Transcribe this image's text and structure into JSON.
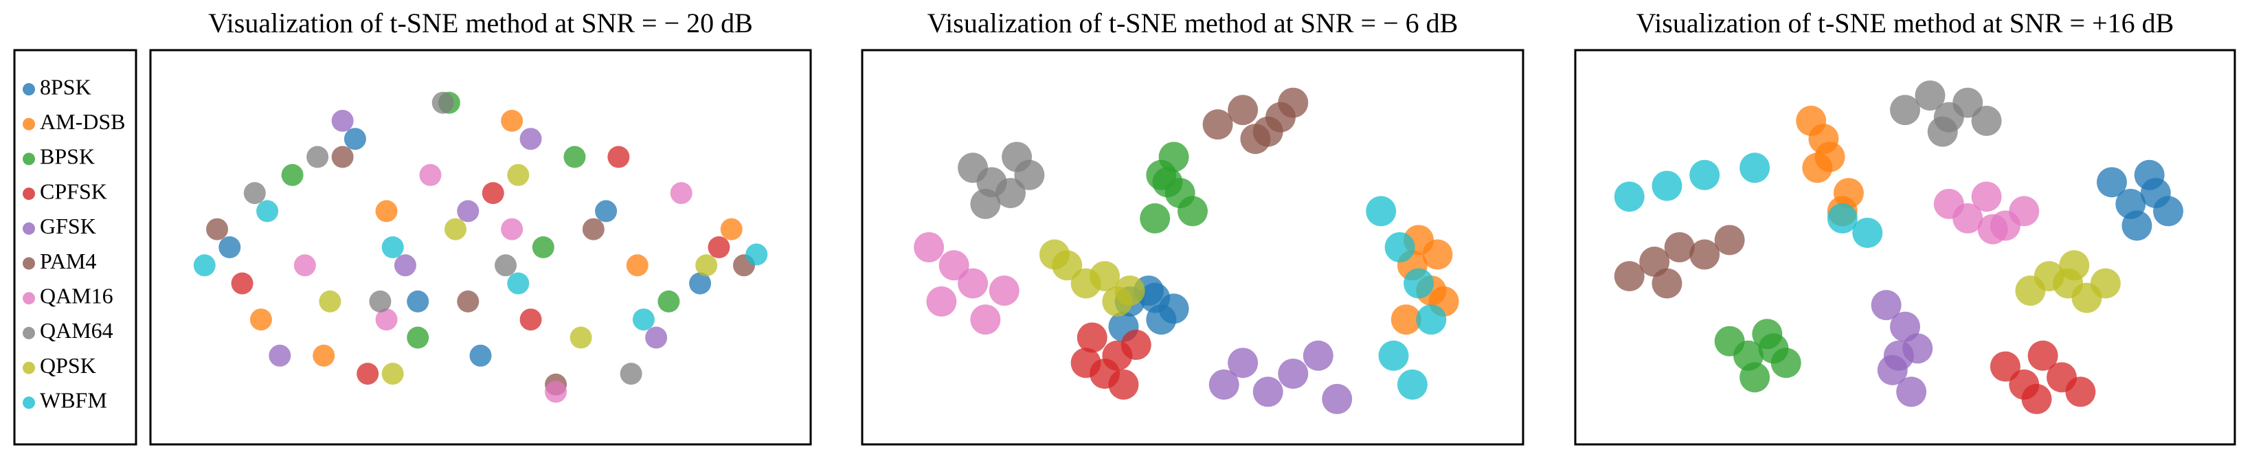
{
  "chart_data": [
    {
      "type": "scatter",
      "title": "Visualization of t-SNE method at SNR = − 20 dB",
      "xlim": [
        0,
        100
      ],
      "ylim": [
        0,
        100
      ],
      "series": [
        {
          "name": "8PSK",
          "color": "#1f77b4",
          "x": [
            10,
            30,
            50,
            70,
            85,
            40
          ],
          "y": [
            50,
            80,
            20,
            60,
            40,
            35
          ]
        },
        {
          "name": "AM-DSB",
          "color": "#ff7f0e",
          "x": [
            15,
            35,
            55,
            75,
            90,
            25
          ],
          "y": [
            30,
            60,
            85,
            45,
            55,
            20
          ]
        },
        {
          "name": "BPSK",
          "color": "#2ca02c",
          "x": [
            20,
            40,
            60,
            80,
            65,
            45
          ],
          "y": [
            70,
            25,
            50,
            35,
            75,
            90
          ]
        },
        {
          "name": "CPFSK",
          "color": "#d62728",
          "x": [
            12,
            32,
            52,
            72,
            88,
            58
          ],
          "y": [
            40,
            15,
            65,
            75,
            50,
            30
          ]
        },
        {
          "name": "GFSK",
          "color": "#9467bd",
          "x": [
            18,
            38,
            58,
            78,
            48,
            28
          ],
          "y": [
            20,
            45,
            80,
            25,
            60,
            85
          ]
        },
        {
          "name": "PAM4",
          "color": "#8c564b",
          "x": [
            8,
            28,
            48,
            68,
            92,
            62
          ],
          "y": [
            55,
            75,
            35,
            55,
            45,
            12
          ]
        },
        {
          "name": "QAM16",
          "color": "#e377c2",
          "x": [
            22,
            42,
            62,
            82,
            35,
            55
          ],
          "y": [
            45,
            70,
            10,
            65,
            30,
            55
          ]
        },
        {
          "name": "QAM64",
          "color": "#7f7f7f",
          "x": [
            14,
            34,
            54,
            74,
            44,
            24
          ],
          "y": [
            65,
            35,
            45,
            15,
            90,
            75
          ]
        },
        {
          "name": "QPSK",
          "color": "#bcbd22",
          "x": [
            26,
            46,
            66,
            86,
            36,
            56
          ],
          "y": [
            35,
            55,
            25,
            45,
            15,
            70
          ]
        },
        {
          "name": "WBFM",
          "color": "#17becf",
          "x": [
            6,
            16,
            36,
            56,
            76,
            94
          ],
          "y": [
            45,
            60,
            50,
            40,
            30,
            48
          ]
        }
      ]
    },
    {
      "type": "scatter",
      "title": "Visualization of t-SNE method at SNR = − 6 dB",
      "xlim": [
        0,
        100
      ],
      "ylim": [
        0,
        100
      ],
      "series": [
        {
          "color": "#1f77b4",
          "x": [
            40,
            45,
            43,
            47,
            39,
            44
          ],
          "y": [
            35,
            30,
            38,
            33,
            28,
            36
          ]
        },
        {
          "color": "#ff7f0e",
          "x": [
            85,
            88,
            86,
            90,
            84,
            89
          ],
          "y": [
            45,
            38,
            52,
            35,
            30,
            48
          ]
        },
        {
          "color": "#2ca02c",
          "x": [
            45,
            48,
            47,
            50,
            44,
            46
          ],
          "y": [
            70,
            65,
            75,
            60,
            58,
            68
          ]
        },
        {
          "color": "#d62728",
          "x": [
            34,
            38,
            36,
            41,
            33,
            39
          ],
          "y": [
            25,
            20,
            15,
            23,
            18,
            12
          ]
        },
        {
          "color": "#9467bd",
          "x": [
            55,
            58,
            62,
            66,
            70,
            73
          ],
          "y": [
            12,
            18,
            10,
            15,
            20,
            8
          ]
        },
        {
          "color": "#8c564b",
          "x": [
            54,
            58,
            62,
            66,
            60,
            64
          ],
          "y": [
            84,
            88,
            82,
            90,
            80,
            86
          ]
        },
        {
          "color": "#e377c2",
          "x": [
            8,
            12,
            15,
            10,
            17,
            20
          ],
          "y": [
            50,
            45,
            40,
            35,
            30,
            38
          ]
        },
        {
          "color": "#7f7f7f",
          "x": [
            15,
            18,
            21,
            24,
            17,
            22
          ],
          "y": [
            72,
            68,
            65,
            70,
            62,
            75
          ]
        },
        {
          "color": "#bcbd22",
          "x": [
            30,
            33,
            36,
            40,
            28,
            38
          ],
          "y": [
            45,
            40,
            42,
            38,
            48,
            35
          ]
        },
        {
          "color": "#17becf",
          "x": [
            80,
            83,
            86,
            88,
            82,
            85
          ],
          "y": [
            60,
            50,
            40,
            30,
            20,
            12
          ]
        }
      ]
    },
    {
      "type": "scatter",
      "title": "Visualization of t-SNE method at SNR = +16 dB",
      "xlim": [
        0,
        100
      ],
      "ylim": [
        0,
        100
      ],
      "series": [
        {
          "color": "#1f77b4",
          "x": [
            83,
            86,
            89,
            92,
            87,
            90
          ],
          "y": [
            68,
            62,
            70,
            60,
            56,
            65
          ]
        },
        {
          "color": "#ff7f0e",
          "x": [
            35,
            37,
            38,
            36,
            41,
            40
          ],
          "y": [
            85,
            80,
            75,
            72,
            65,
            60
          ]
        },
        {
          "color": "#2ca02c",
          "x": [
            22,
            25,
            28,
            31,
            26,
            29
          ],
          "y": [
            24,
            20,
            26,
            18,
            14,
            22
          ]
        },
        {
          "color": "#d62728",
          "x": [
            66,
            69,
            72,
            75,
            78,
            71
          ],
          "y": [
            17,
            12,
            20,
            14,
            10,
            8
          ]
        },
        {
          "color": "#9467bd",
          "x": [
            47,
            50,
            52,
            48,
            51,
            49
          ],
          "y": [
            34,
            28,
            22,
            16,
            10,
            20
          ]
        },
        {
          "color": "#8c564b",
          "x": [
            6,
            10,
            14,
            18,
            22,
            12
          ],
          "y": [
            42,
            46,
            50,
            48,
            52,
            40
          ]
        },
        {
          "color": "#e377c2",
          "x": [
            57,
            60,
            63,
            66,
            69,
            64
          ],
          "y": [
            62,
            58,
            64,
            56,
            60,
            55
          ]
        },
        {
          "color": "#7f7f7f",
          "x": [
            50,
            54,
            57,
            60,
            63,
            56
          ],
          "y": [
            88,
            92,
            86,
            90,
            85,
            82
          ]
        },
        {
          "color": "#bcbd22",
          "x": [
            70,
            73,
            76,
            79,
            82,
            77
          ],
          "y": [
            38,
            42,
            40,
            36,
            40,
            45
          ]
        },
        {
          "color": "#17becf",
          "x": [
            6,
            12,
            18,
            26,
            40,
            44
          ],
          "y": [
            64,
            67,
            70,
            72,
            58,
            54
          ]
        }
      ]
    }
  ]
}
